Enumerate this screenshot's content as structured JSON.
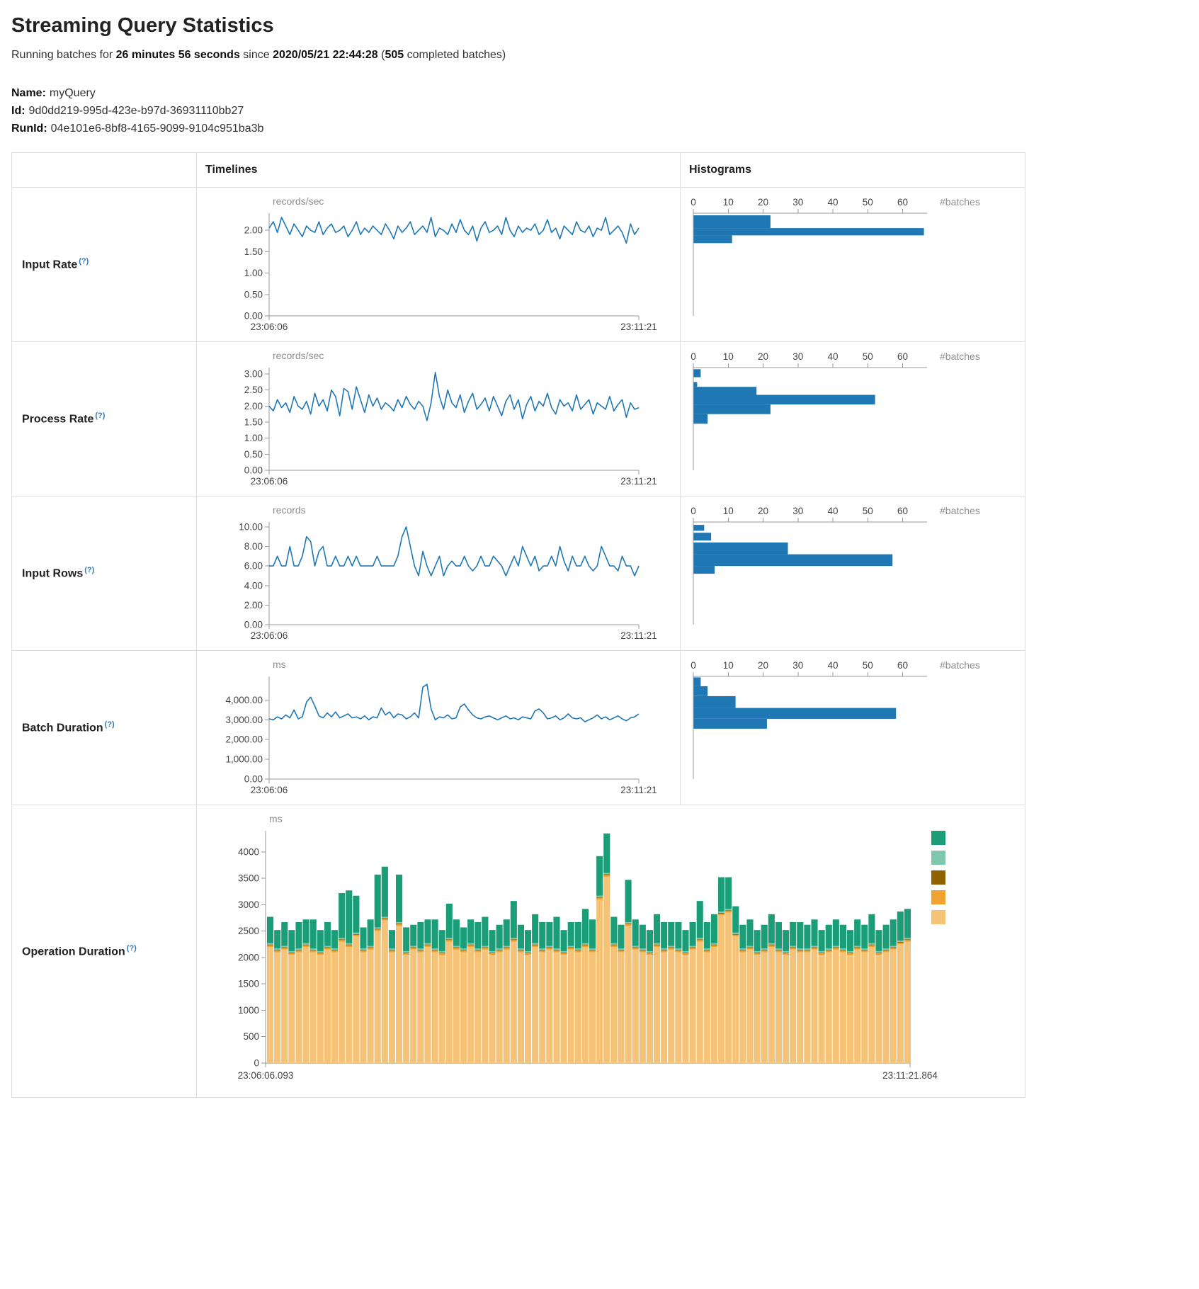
{
  "page": {
    "title": "Streaming Query Statistics",
    "subtitle": {
      "prefix": "Running batches for ",
      "duration": "26 minutes 56 seconds",
      "middle": " since ",
      "start_time": "2020/05/21 22:44:28",
      "open_paren": " (",
      "batches": "505",
      "suffix": " completed batches)"
    },
    "name_label": "Name:",
    "name_value": "myQuery",
    "id_label": "Id:",
    "id_value": "9d0dd219-995d-423e-b97d-36931110bb27",
    "runid_label": "RunId:",
    "runid_value": "04e101e6-8bf8-4165-9099-9104c951ba3b"
  },
  "table": {
    "timelines_header": "Timelines",
    "histograms_header": "Histograms",
    "rows": [
      {
        "label": "Input Rate",
        "help": "(?)"
      },
      {
        "label": "Process Rate",
        "help": "(?)"
      },
      {
        "label": "Input Rows",
        "help": "(?)"
      },
      {
        "label": "Batch Duration",
        "help": "(?)"
      },
      {
        "label": "Operation Duration",
        "help": "(?)"
      }
    ]
  },
  "chart_data": [
    {
      "id": "input_rate_timeline",
      "type": "line",
      "unit": "records/sec",
      "x_start": "23:06:06",
      "x_end": "23:11:21",
      "ylim": [
        0,
        2.4
      ],
      "yticks": [
        0,
        0.5,
        1,
        1.5,
        2
      ],
      "ytick_labels": [
        "0.00",
        "0.50",
        "1.00",
        "1.50",
        "2.00"
      ],
      "values": [
        2.05,
        2.2,
        1.95,
        2.3,
        2.1,
        1.9,
        2.15,
        2.0,
        1.85,
        2.1,
        2.0,
        1.95,
        2.2,
        1.9,
        2.05,
        2.15,
        1.95,
        2.0,
        2.1,
        1.85,
        2.0,
        2.2,
        1.9,
        2.05,
        1.95,
        2.1,
        2.0,
        1.9,
        2.15,
        2.0,
        1.8,
        2.1,
        1.95,
        2.05,
        2.2,
        1.9,
        2.0,
        2.1,
        1.95,
        2.3,
        1.85,
        2.05,
        2.0,
        1.9,
        2.15,
        1.95,
        2.25,
        2.0,
        1.9,
        2.1,
        1.75,
        2.05,
        2.2,
        1.95,
        2.0,
        2.1,
        1.9,
        2.3,
        2.0,
        1.85,
        2.1,
        1.95,
        2.05,
        2.0,
        2.15,
        1.9,
        2.0,
        2.25,
        1.95,
        2.05,
        1.8,
        2.1,
        2.0,
        1.9,
        2.2,
        2.0,
        1.95,
        2.1,
        1.85,
        2.05,
        2.0,
        2.3,
        1.9,
        2.0,
        2.1,
        1.95,
        1.7,
        2.15,
        1.9,
        2.05
      ]
    },
    {
      "id": "input_rate_histogram",
      "type": "hbar",
      "xlabel": "#batches",
      "xlim": [
        0,
        67
      ],
      "xticks": [
        0,
        10,
        20,
        30,
        40,
        50,
        60
      ],
      "ylim": [
        0,
        2.4
      ],
      "bins": [
        {
          "from": 2.05,
          "to": 2.35,
          "count": 22
        },
        {
          "from": 1.88,
          "to": 2.05,
          "count": 66
        },
        {
          "from": 1.7,
          "to": 1.88,
          "count": 11
        }
      ]
    },
    {
      "id": "process_rate_timeline",
      "type": "line",
      "unit": "records/sec",
      "x_start": "23:06:06",
      "x_end": "23:11:21",
      "ylim": [
        0,
        3.2
      ],
      "yticks": [
        0,
        0.5,
        1,
        1.5,
        2,
        2.5,
        3
      ],
      "ytick_labels": [
        "0.00",
        "0.50",
        "1.00",
        "1.50",
        "2.00",
        "2.50",
        "3.00"
      ],
      "values": [
        2.0,
        1.85,
        2.2,
        1.95,
        2.1,
        1.8,
        2.3,
        2.0,
        1.9,
        2.15,
        1.75,
        2.4,
        2.0,
        2.2,
        1.85,
        2.5,
        2.3,
        1.7,
        2.55,
        2.45,
        1.9,
        2.6,
        2.2,
        1.8,
        2.35,
        2.0,
        2.25,
        1.9,
        2.1,
        2.0,
        1.85,
        2.2,
        1.95,
        2.3,
        2.05,
        1.9,
        2.15,
        2.0,
        1.55,
        2.1,
        3.05,
        2.3,
        1.9,
        2.5,
        2.1,
        1.95,
        2.35,
        1.8,
        2.15,
        2.4,
        1.9,
        2.05,
        2.25,
        1.85,
        2.3,
        2.0,
        1.7,
        2.15,
        2.35,
        1.9,
        2.2,
        1.6,
        2.05,
        2.3,
        1.85,
        2.15,
        2.0,
        2.4,
        1.95,
        1.75,
        2.2,
        2.0,
        2.1,
        1.85,
        2.35,
        1.9,
        2.05,
        2.2,
        1.75,
        2.1,
        2.0,
        1.9,
        2.3,
        1.85,
        2.05,
        2.2,
        1.65,
        2.1,
        1.9,
        1.95
      ]
    },
    {
      "id": "process_rate_histogram",
      "type": "hbar",
      "xlabel": "#batches",
      "xlim": [
        0,
        67
      ],
      "xticks": [
        0,
        10,
        20,
        30,
        40,
        50,
        60
      ],
      "ylim": [
        0,
        3.2
      ],
      "bins": [
        {
          "from": 2.9,
          "to": 3.15,
          "count": 2
        },
        {
          "from": 2.6,
          "to": 2.75,
          "count": 1
        },
        {
          "from": 2.35,
          "to": 2.6,
          "count": 18
        },
        {
          "from": 2.05,
          "to": 2.35,
          "count": 52
        },
        {
          "from": 1.75,
          "to": 2.05,
          "count": 22
        },
        {
          "from": 1.45,
          "to": 1.75,
          "count": 4
        }
      ]
    },
    {
      "id": "input_rows_timeline",
      "type": "line",
      "unit": "records",
      "x_start": "23:06:06",
      "x_end": "23:11:21",
      "ylim": [
        0,
        10.5
      ],
      "yticks": [
        0,
        2,
        4,
        6,
        8,
        10
      ],
      "ytick_labels": [
        "0.00",
        "2.00",
        "4.00",
        "6.00",
        "8.00",
        "10.00"
      ],
      "values": [
        6,
        6,
        7,
        6,
        6,
        8,
        6,
        6,
        7,
        9,
        8.5,
        6,
        7.5,
        8,
        6,
        6,
        7,
        6,
        6,
        7,
        6,
        7,
        6,
        6,
        6,
        6,
        7,
        6,
        6,
        6,
        6,
        7,
        9,
        10,
        8,
        6,
        5,
        7.5,
        6,
        5,
        6,
        7,
        5,
        6,
        6.5,
        6,
        6,
        7,
        6,
        5.5,
        6,
        7,
        6,
        6,
        7,
        6.5,
        6,
        5,
        6,
        7,
        6,
        8,
        7,
        6,
        7,
        5.5,
        6,
        6,
        7,
        6,
        8,
        6.5,
        5.5,
        7,
        6,
        6,
        7,
        6,
        5.5,
        6,
        8,
        7,
        6,
        6,
        5.5,
        7,
        6,
        6,
        5,
        6
      ]
    },
    {
      "id": "input_rows_histogram",
      "type": "hbar",
      "xlabel": "#batches",
      "xlim": [
        0,
        67
      ],
      "xticks": [
        0,
        10,
        20,
        30,
        40,
        50,
        60
      ],
      "ylim": [
        0,
        10.5
      ],
      "bins": [
        {
          "from": 9.6,
          "to": 10.2,
          "count": 3
        },
        {
          "from": 8.6,
          "to": 9.4,
          "count": 5
        },
        {
          "from": 7.2,
          "to": 8.4,
          "count": 27
        },
        {
          "from": 6.0,
          "to": 7.2,
          "count": 57
        },
        {
          "from": 5.2,
          "to": 6.0,
          "count": 6
        }
      ]
    },
    {
      "id": "batch_duration_timeline",
      "type": "line",
      "unit": "ms",
      "x_start": "23:06:06",
      "x_end": "23:11:21",
      "ylim": [
        0,
        5200
      ],
      "yticks": [
        0,
        1000,
        2000,
        3000,
        4000
      ],
      "ytick_labels": [
        "0.00",
        "1,000.00",
        "2,000.00",
        "3,000.00",
        "4,000.00"
      ],
      "values": [
        3050,
        3000,
        3150,
        3050,
        3250,
        3100,
        3500,
        3050,
        3150,
        3900,
        4150,
        3700,
        3200,
        3100,
        3350,
        3150,
        3400,
        3100,
        3200,
        3300,
        3100,
        3150,
        3050,
        3200,
        3000,
        3150,
        3100,
        3600,
        3250,
        3400,
        3100,
        3300,
        3250,
        3050,
        3150,
        3350,
        3100,
        4650,
        4800,
        3550,
        3000,
        3150,
        3100,
        3250,
        3050,
        3100,
        3650,
        3800,
        3500,
        3250,
        3100,
        3050,
        3150,
        3200,
        3100,
        3000,
        3100,
        3200,
        3050,
        3100,
        3000,
        3150,
        3100,
        3050,
        3450,
        3550,
        3350,
        3050,
        3100,
        3200,
        3000,
        3100,
        3300,
        3100,
        3050,
        3100,
        2900,
        3000,
        3100,
        3250,
        3050,
        3150,
        3000,
        3100,
        3200,
        3050,
        2950,
        3100,
        3150,
        3300
      ]
    },
    {
      "id": "batch_duration_histogram",
      "type": "hbar",
      "xlabel": "#batches",
      "xlim": [
        0,
        67
      ],
      "xticks": [
        0,
        10,
        20,
        30,
        40,
        50,
        60
      ],
      "ylim": [
        0,
        5200
      ],
      "bins": [
        {
          "from": 4700,
          "to": 5150,
          "count": 2
        },
        {
          "from": 4200,
          "to": 4700,
          "count": 4
        },
        {
          "from": 3600,
          "to": 4200,
          "count": 12
        },
        {
          "from": 3050,
          "to": 3600,
          "count": 58
        },
        {
          "from": 2550,
          "to": 3050,
          "count": 21
        }
      ]
    },
    {
      "id": "operation_duration_timeline",
      "type": "stacked-bar",
      "unit": "ms",
      "x_start": "23:06:06.093",
      "x_end": "23:11:21.864",
      "ylim": [
        0,
        4400
      ],
      "yticks": [
        0,
        500,
        1000,
        1500,
        2000,
        2500,
        3000,
        3500,
        4000
      ],
      "ytick_labels": [
        "0",
        "500",
        "1000",
        "1500",
        "2000",
        "2500",
        "3000",
        "3500",
        "4000"
      ],
      "legend_colors": [
        "#1b9e77",
        "#7fc8ae",
        "#8f6400",
        "#f0a330",
        "#f5c377"
      ],
      "stack_series": [
        {
          "name": "series-bottom",
          "color": "#f5c377",
          "values": [
            2200,
            2100,
            2150,
            2050,
            2100,
            2200,
            2100,
            2050,
            2150,
            2100,
            2300,
            2200,
            2400,
            2100,
            2150,
            2500,
            2700,
            2100,
            2600,
            2050,
            2150,
            2100,
            2200,
            2100,
            2050,
            2300,
            2150,
            2100,
            2200,
            2100,
            2150,
            2050,
            2100,
            2150,
            2300,
            2100,
            2050,
            2200,
            2100,
            2150,
            2100,
            2050,
            2150,
            2100,
            2200,
            2100,
            3100,
            3530,
            2200,
            2100,
            2600,
            2150,
            2100,
            2050,
            2200,
            2100,
            2150,
            2100,
            2050,
            2150,
            2300,
            2100,
            2200,
            2800,
            2850,
            2400,
            2100,
            2150,
            2050,
            2100,
            2200,
            2100,
            2050,
            2150,
            2100,
            2100,
            2150,
            2050,
            2100,
            2150,
            2100,
            2050,
            2150,
            2100,
            2200,
            2050,
            2100,
            2150,
            2250,
            2300
          ]
        },
        {
          "name": "series-orange",
          "color": "#f0a330",
          "const": 30
        },
        {
          "name": "series-dark",
          "color": "#8f6400",
          "const": 15
        },
        {
          "name": "series-lightteal",
          "color": "#7fc8ae",
          "const": 25
        },
        {
          "name": "series-top",
          "color": "#1b9e77",
          "values": [
            500,
            350,
            450,
            400,
            500,
            450,
            550,
            400,
            450,
            350,
            850,
            1000,
            700,
            400,
            500,
            1000,
            950,
            350,
            900,
            450,
            400,
            500,
            450,
            550,
            400,
            650,
            500,
            400,
            450,
            500,
            550,
            400,
            450,
            500,
            700,
            450,
            400,
            550,
            500,
            450,
            600,
            400,
            450,
            500,
            650,
            550,
            750,
            750,
            500,
            450,
            800,
            500,
            450,
            400,
            550,
            500,
            450,
            500,
            400,
            450,
            700,
            500,
            550,
            650,
            600,
            500,
            450,
            500,
            400,
            450,
            550,
            500,
            400,
            450,
            500,
            450,
            500,
            400,
            450,
            500,
            450,
            400,
            500,
            450,
            550,
            400,
            450,
            500,
            550,
            550
          ]
        }
      ]
    }
  ]
}
